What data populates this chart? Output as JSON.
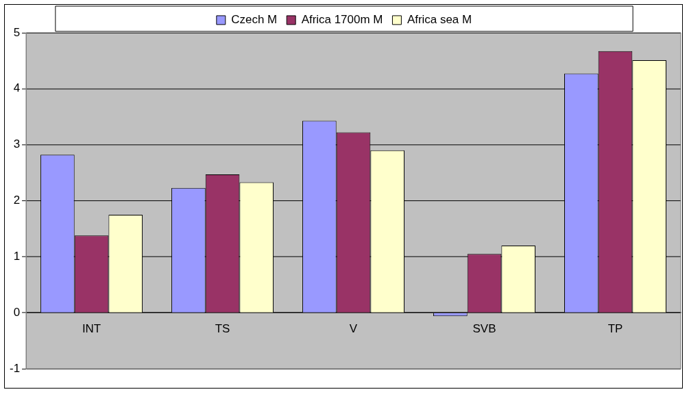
{
  "chart_data": {
    "type": "bar",
    "categories": [
      "INT",
      "TS",
      "V",
      "SVB",
      "TP"
    ],
    "series": [
      {
        "name": "Czech M",
        "color": "#9999ff",
        "values": [
          2.82,
          2.23,
          3.43,
          -0.06,
          4.27
        ]
      },
      {
        "name": "Africa 1700m M",
        "color": "#993366",
        "values": [
          1.38,
          2.47,
          3.22,
          1.05,
          4.67
        ]
      },
      {
        "name": "Africa sea M",
        "color": "#ffffcc",
        "values": [
          1.75,
          2.33,
          2.9,
          1.2,
          4.51
        ]
      }
    ],
    "ylim": [
      -1,
      5
    ],
    "yticks": [
      -1,
      0,
      1,
      2,
      3,
      4,
      5
    ],
    "grid": "y",
    "legend": "top"
  }
}
